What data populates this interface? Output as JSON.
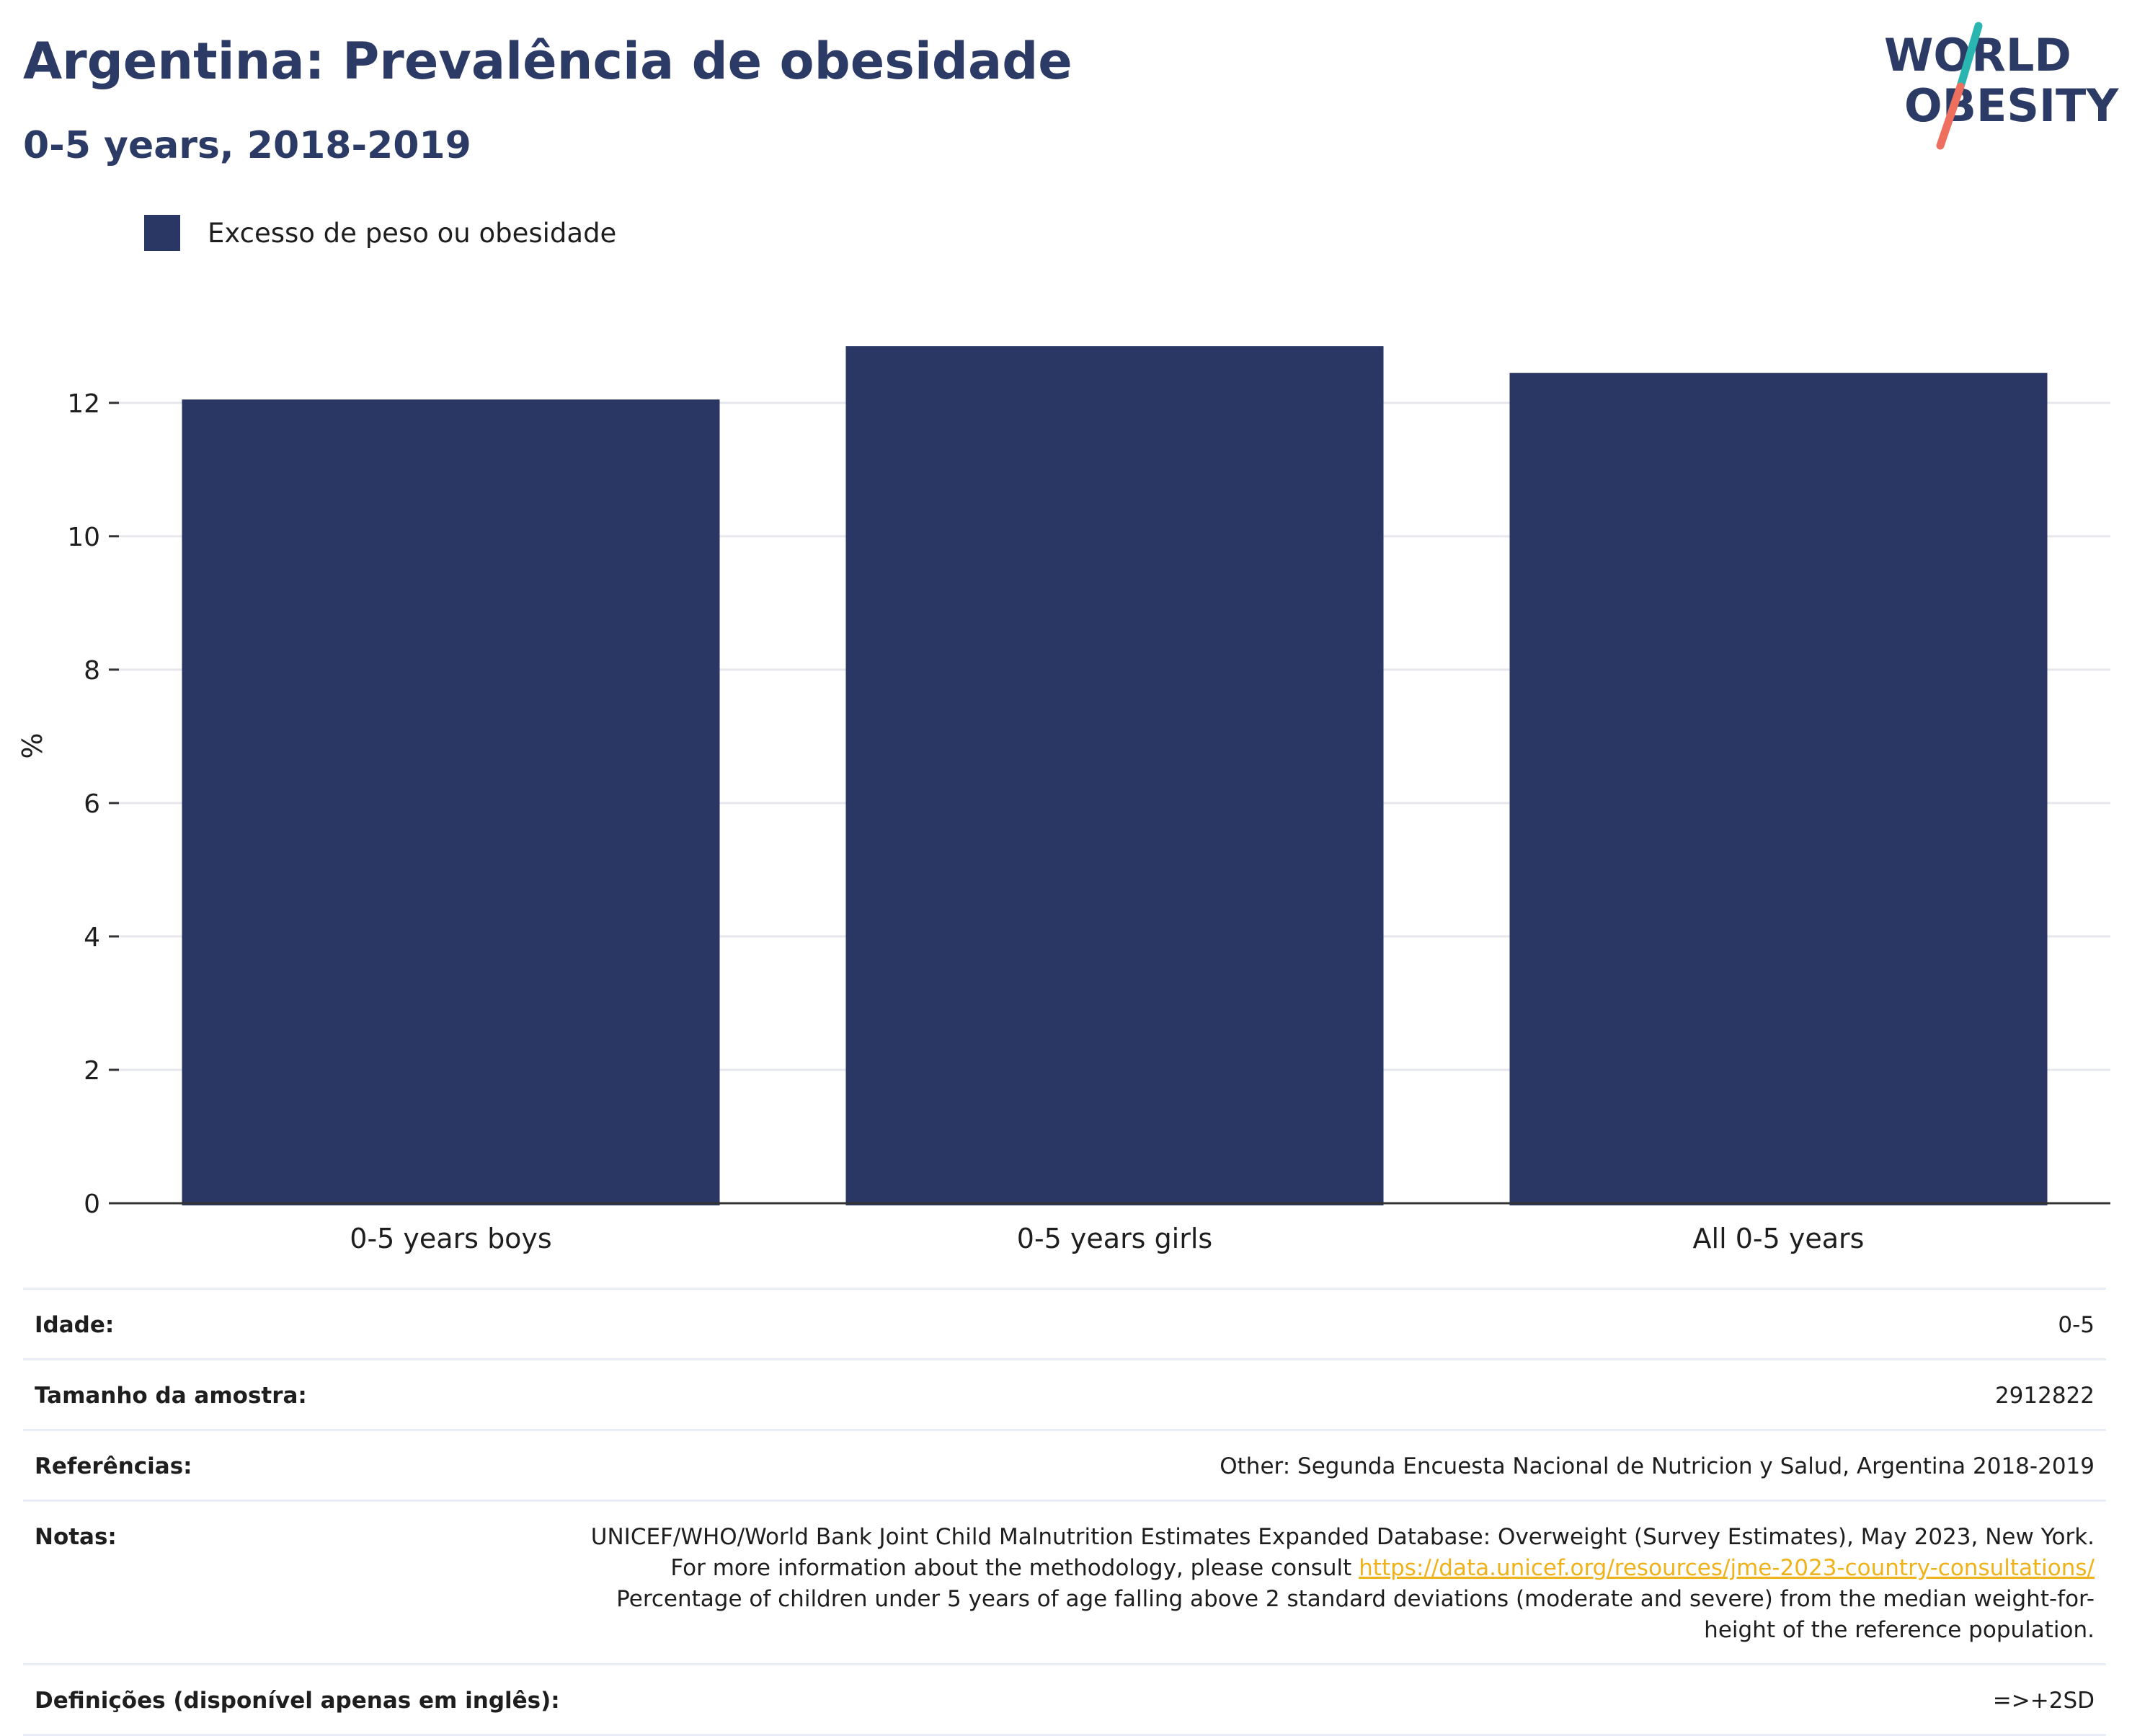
{
  "header": {
    "title": "Argentina: Prevalência de obesidade",
    "subtitle": "0-5 years, 2018-2019"
  },
  "logo": {
    "line1": "WORLD",
    "line2": "OBESITY",
    "colors": {
      "text": "#2c3a66",
      "slash_teal": "#2bb5b0",
      "slash_coral": "#ef6f5e"
    }
  },
  "legend": {
    "label": "Excesso de peso ou obesidade",
    "color": "#2a3764"
  },
  "chart_data": {
    "type": "bar",
    "categories": [
      "0-5 years boys",
      "0-5 years girls",
      "All 0-5 years"
    ],
    "series": [
      {
        "name": "Excesso de peso ou obesidade",
        "values": [
          12.05,
          12.85,
          12.45
        ],
        "color": "#2a3764"
      }
    ],
    "ylabel": "%",
    "xlabel": "",
    "ylim": [
      0,
      13.5
    ],
    "yticks": [
      0,
      2,
      4,
      6,
      8,
      10,
      12
    ],
    "grid": true,
    "legend_position": "top-left"
  },
  "meta": {
    "age": {
      "label": "Idade:",
      "value": "0-5"
    },
    "sample": {
      "label": "Tamanho da amostra:",
      "value": "2912822"
    },
    "references": {
      "label": "Referências:",
      "value": "Other: Segunda Encuesta Nacional de Nutricion y Salud, Argentina 2018-2019"
    },
    "notes": {
      "label": "Notas:",
      "text_before": "UNICEF/WHO/World Bank Joint Child Malnutrition Estimates Expanded Database: Overweight (Survey Estimates), May 2023, New York. For more information about the methodology, please consult ",
      "link": "https://data.unicef.org/resources/jme-2023-country-consultations/",
      "text_after": " Percentage of children under 5 years of age falling above 2 standard deviations (moderate and severe) from the median weight-for-height of the reference population."
    },
    "definitions": {
      "label": "Definições (disponível apenas em inglês):",
      "value": "=>+2SD"
    }
  }
}
